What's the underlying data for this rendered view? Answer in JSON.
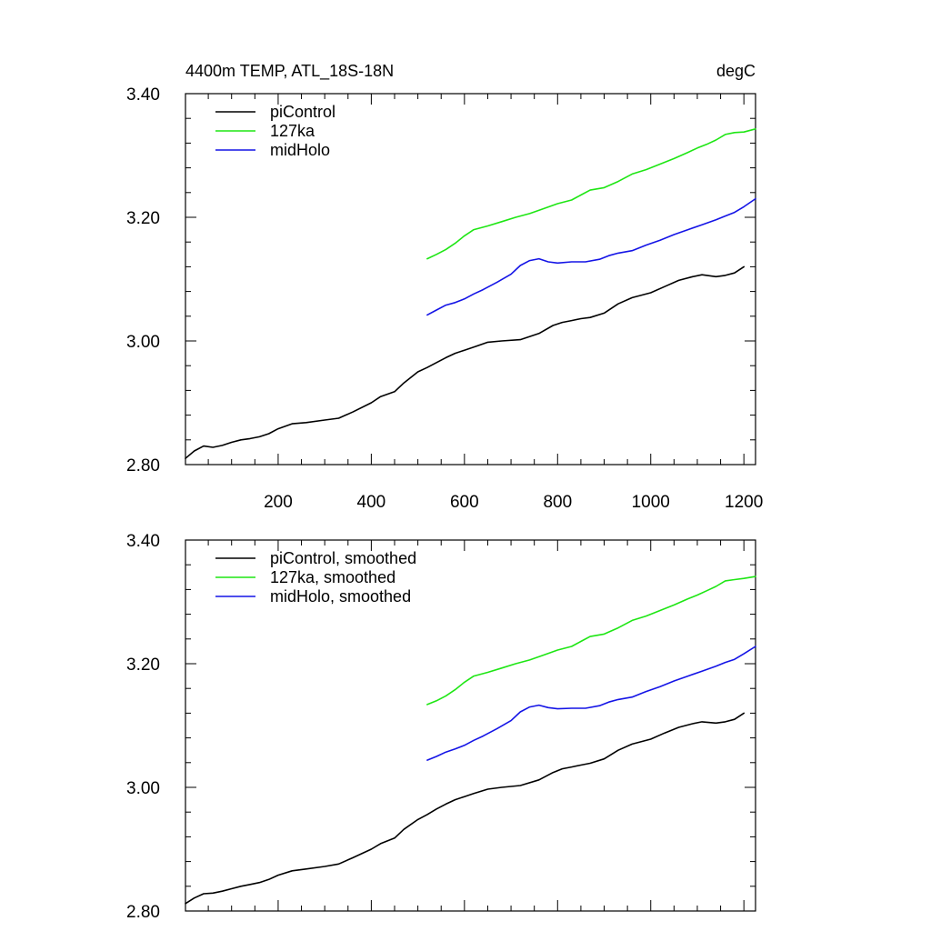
{
  "figure": {
    "title_left": "4400m TEMP, ATL_18S-18N",
    "title_right": "degC"
  },
  "chart_data": [
    {
      "type": "line",
      "title": "4400m TEMP, ATL_18S-18N",
      "units": "degC",
      "xlabel": "",
      "ylabel": "",
      "xlim": [
        1,
        1225
      ],
      "ylim": [
        2.8,
        3.4
      ],
      "x_ticks": [
        200,
        400,
        600,
        800,
        1000,
        1200
      ],
      "x_tick_labels": [
        "200",
        "400",
        "600",
        "800",
        "1000",
        "1200"
      ],
      "y_ticks": [
        2.8,
        3.0,
        3.2,
        3.4
      ],
      "y_tick_labels": [
        "2.80",
        "3.00",
        "3.20",
        "3.40"
      ],
      "legend_position": "top-left",
      "series": [
        {
          "name": "piControl",
          "color": "#000000",
          "x": [
            1,
            20,
            40,
            60,
            80,
            100,
            120,
            140,
            160,
            180,
            200,
            230,
            260,
            300,
            330,
            360,
            400,
            420,
            450,
            470,
            500,
            520,
            540,
            560,
            580,
            600,
            620,
            650,
            680,
            720,
            760,
            790,
            810,
            830,
            850,
            870,
            900,
            930,
            960,
            1000,
            1030,
            1060,
            1090,
            1110,
            1140,
            1160,
            1180,
            1200
          ],
          "values": [
            2.81,
            2.822,
            2.83,
            2.828,
            2.831,
            2.836,
            2.84,
            2.842,
            2.845,
            2.85,
            2.858,
            2.866,
            2.868,
            2.872,
            2.875,
            2.885,
            2.9,
            2.91,
            2.918,
            2.932,
            2.95,
            2.957,
            2.965,
            2.973,
            2.98,
            2.985,
            2.99,
            2.998,
            3.0,
            3.002,
            3.012,
            3.025,
            3.03,
            3.033,
            3.036,
            3.038,
            3.045,
            3.06,
            3.07,
            3.078,
            3.088,
            3.098,
            3.104,
            3.107,
            3.104,
            3.106,
            3.11,
            3.12
          ]
        },
        {
          "name": "127ka",
          "color": "#1ee614",
          "x": [
            520,
            540,
            560,
            580,
            600,
            620,
            650,
            680,
            710,
            740,
            770,
            800,
            830,
            850,
            870,
            900,
            930,
            960,
            990,
            1020,
            1050,
            1080,
            1100,
            1120,
            1140,
            1160,
            1180,
            1200,
            1225
          ],
          "values": [
            3.133,
            3.14,
            3.148,
            3.158,
            3.17,
            3.18,
            3.186,
            3.193,
            3.2,
            3.206,
            3.214,
            3.222,
            3.228,
            3.236,
            3.244,
            3.248,
            3.258,
            3.27,
            3.277,
            3.286,
            3.295,
            3.305,
            3.312,
            3.318,
            3.325,
            3.334,
            3.337,
            3.338,
            3.343
          ]
        },
        {
          "name": "midHolo",
          "color": "#1414e6",
          "x": [
            520,
            540,
            560,
            580,
            600,
            620,
            640,
            670,
            700,
            720,
            740,
            760,
            780,
            800,
            830,
            860,
            890,
            910,
            930,
            960,
            990,
            1020,
            1050,
            1080,
            1110,
            1140,
            1160,
            1180,
            1200,
            1225
          ],
          "values": [
            3.042,
            3.05,
            3.058,
            3.062,
            3.068,
            3.076,
            3.083,
            3.095,
            3.108,
            3.122,
            3.13,
            3.133,
            3.128,
            3.126,
            3.128,
            3.128,
            3.132,
            3.138,
            3.142,
            3.146,
            3.155,
            3.163,
            3.172,
            3.18,
            3.188,
            3.196,
            3.202,
            3.208,
            3.217,
            3.23
          ]
        }
      ]
    },
    {
      "type": "line",
      "title": "",
      "xlabel": "",
      "ylabel": "",
      "xlim": [
        1,
        1225
      ],
      "ylim": [
        2.8,
        3.4
      ],
      "x_ticks": [
        200,
        400,
        600,
        800,
        1000,
        1200
      ],
      "x_tick_labels": [],
      "y_ticks": [
        2.8,
        3.0,
        3.2,
        3.4
      ],
      "y_tick_labels": [
        "2.80",
        "3.00",
        "3.20",
        "3.40"
      ],
      "legend_position": "top-left",
      "series": [
        {
          "name": "piControl, smoothed",
          "color": "#000000",
          "x": [
            1,
            20,
            40,
            60,
            80,
            100,
            120,
            140,
            160,
            180,
            200,
            230,
            260,
            300,
            330,
            360,
            400,
            420,
            450,
            470,
            500,
            520,
            540,
            560,
            580,
            600,
            620,
            650,
            680,
            720,
            760,
            790,
            810,
            830,
            850,
            870,
            900,
            930,
            960,
            1000,
            1030,
            1060,
            1090,
            1110,
            1140,
            1160,
            1180,
            1200
          ],
          "values": [
            2.812,
            2.821,
            2.828,
            2.829,
            2.832,
            2.836,
            2.84,
            2.843,
            2.846,
            2.851,
            2.858,
            2.865,
            2.868,
            2.872,
            2.876,
            2.886,
            2.9,
            2.909,
            2.918,
            2.932,
            2.948,
            2.956,
            2.965,
            2.973,
            2.98,
            2.985,
            2.99,
            2.997,
            3.0,
            3.003,
            3.012,
            3.024,
            3.03,
            3.033,
            3.036,
            3.039,
            3.046,
            3.06,
            3.07,
            3.078,
            3.088,
            3.097,
            3.103,
            3.106,
            3.104,
            3.106,
            3.11,
            3.12
          ]
        },
        {
          "name": "127ka, smoothed",
          "color": "#1ee614",
          "x": [
            520,
            540,
            560,
            580,
            600,
            620,
            650,
            680,
            710,
            740,
            770,
            800,
            830,
            850,
            870,
            900,
            930,
            960,
            990,
            1020,
            1050,
            1080,
            1100,
            1120,
            1140,
            1160,
            1180,
            1200,
            1225
          ],
          "values": [
            3.134,
            3.14,
            3.148,
            3.158,
            3.17,
            3.18,
            3.186,
            3.193,
            3.2,
            3.206,
            3.214,
            3.222,
            3.228,
            3.236,
            3.244,
            3.248,
            3.258,
            3.27,
            3.277,
            3.286,
            3.295,
            3.305,
            3.311,
            3.318,
            3.325,
            3.334,
            3.336,
            3.338,
            3.341
          ]
        },
        {
          "name": "midHolo, smoothed",
          "color": "#1414e6",
          "x": [
            520,
            540,
            560,
            580,
            600,
            620,
            640,
            670,
            700,
            720,
            740,
            760,
            780,
            800,
            830,
            860,
            890,
            910,
            930,
            960,
            990,
            1020,
            1050,
            1080,
            1110,
            1140,
            1160,
            1180,
            1200,
            1225
          ],
          "values": [
            3.044,
            3.05,
            3.057,
            3.062,
            3.068,
            3.076,
            3.083,
            3.095,
            3.108,
            3.122,
            3.13,
            3.133,
            3.129,
            3.127,
            3.128,
            3.128,
            3.132,
            3.138,
            3.142,
            3.146,
            3.155,
            3.163,
            3.172,
            3.18,
            3.188,
            3.196,
            3.202,
            3.207,
            3.216,
            3.228
          ]
        }
      ]
    }
  ]
}
